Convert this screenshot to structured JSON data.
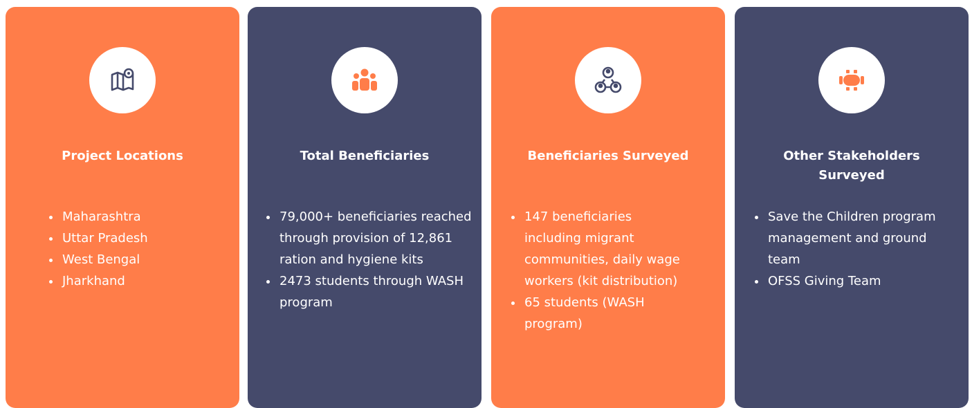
{
  "cards": [
    {
      "title": "Project Locations",
      "bullets": [
        "Maharashtra",
        "Uttar Pradesh",
        "West Bengal",
        "Jharkhand"
      ]
    },
    {
      "title": "Total Beneficiaries",
      "bullets": [
        "79,000+ beneficiaries reached through provision of 12,861 ration and hygiene kits",
        "2473 students through WASH program"
      ]
    },
    {
      "title": "Beneficiaries Surveyed",
      "bullets": [
        "147 beneficiaries including migrant communities, daily wage workers (kit distribution)",
        "65 students (WASH program)"
      ]
    },
    {
      "title": "Other Stakeholders Surveyed",
      "bullets": [
        "Save the Children program management and ground team",
        "OFSS Giving Team"
      ]
    }
  ]
}
